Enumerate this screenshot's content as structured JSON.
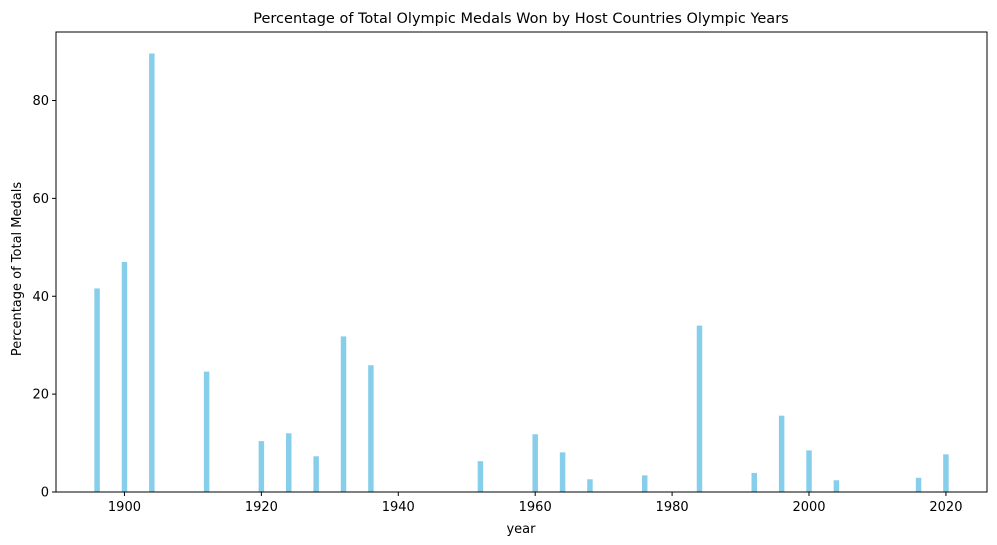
{
  "chart_data": {
    "type": "bar",
    "title": "Percentage of Total Olympic Medals Won by Host Countries Olympic Years",
    "xlabel": "year",
    "ylabel": "Percentage of Total Medals",
    "xlim": [
      1890,
      2026
    ],
    "ylim": [
      0,
      94
    ],
    "xticks": [
      1900,
      1920,
      1940,
      1960,
      1980,
      2000,
      2020
    ],
    "yticks": [
      0,
      20,
      40,
      60,
      80
    ],
    "bar_color": "#87ceeb",
    "bar_width_years": 0.8,
    "grid": false,
    "x": [
      1896,
      1900,
      1904,
      1912,
      1920,
      1924,
      1928,
      1932,
      1936,
      1952,
      1960,
      1964,
      1968,
      1976,
      1984,
      1992,
      1996,
      2000,
      2004,
      2016,
      2020
    ],
    "values": [
      41.6,
      47.0,
      89.6,
      24.6,
      10.4,
      12.0,
      7.3,
      31.8,
      25.9,
      6.3,
      11.8,
      8.1,
      2.6,
      3.4,
      34.0,
      3.9,
      15.6,
      8.5,
      2.4,
      2.9,
      7.7
    ]
  }
}
